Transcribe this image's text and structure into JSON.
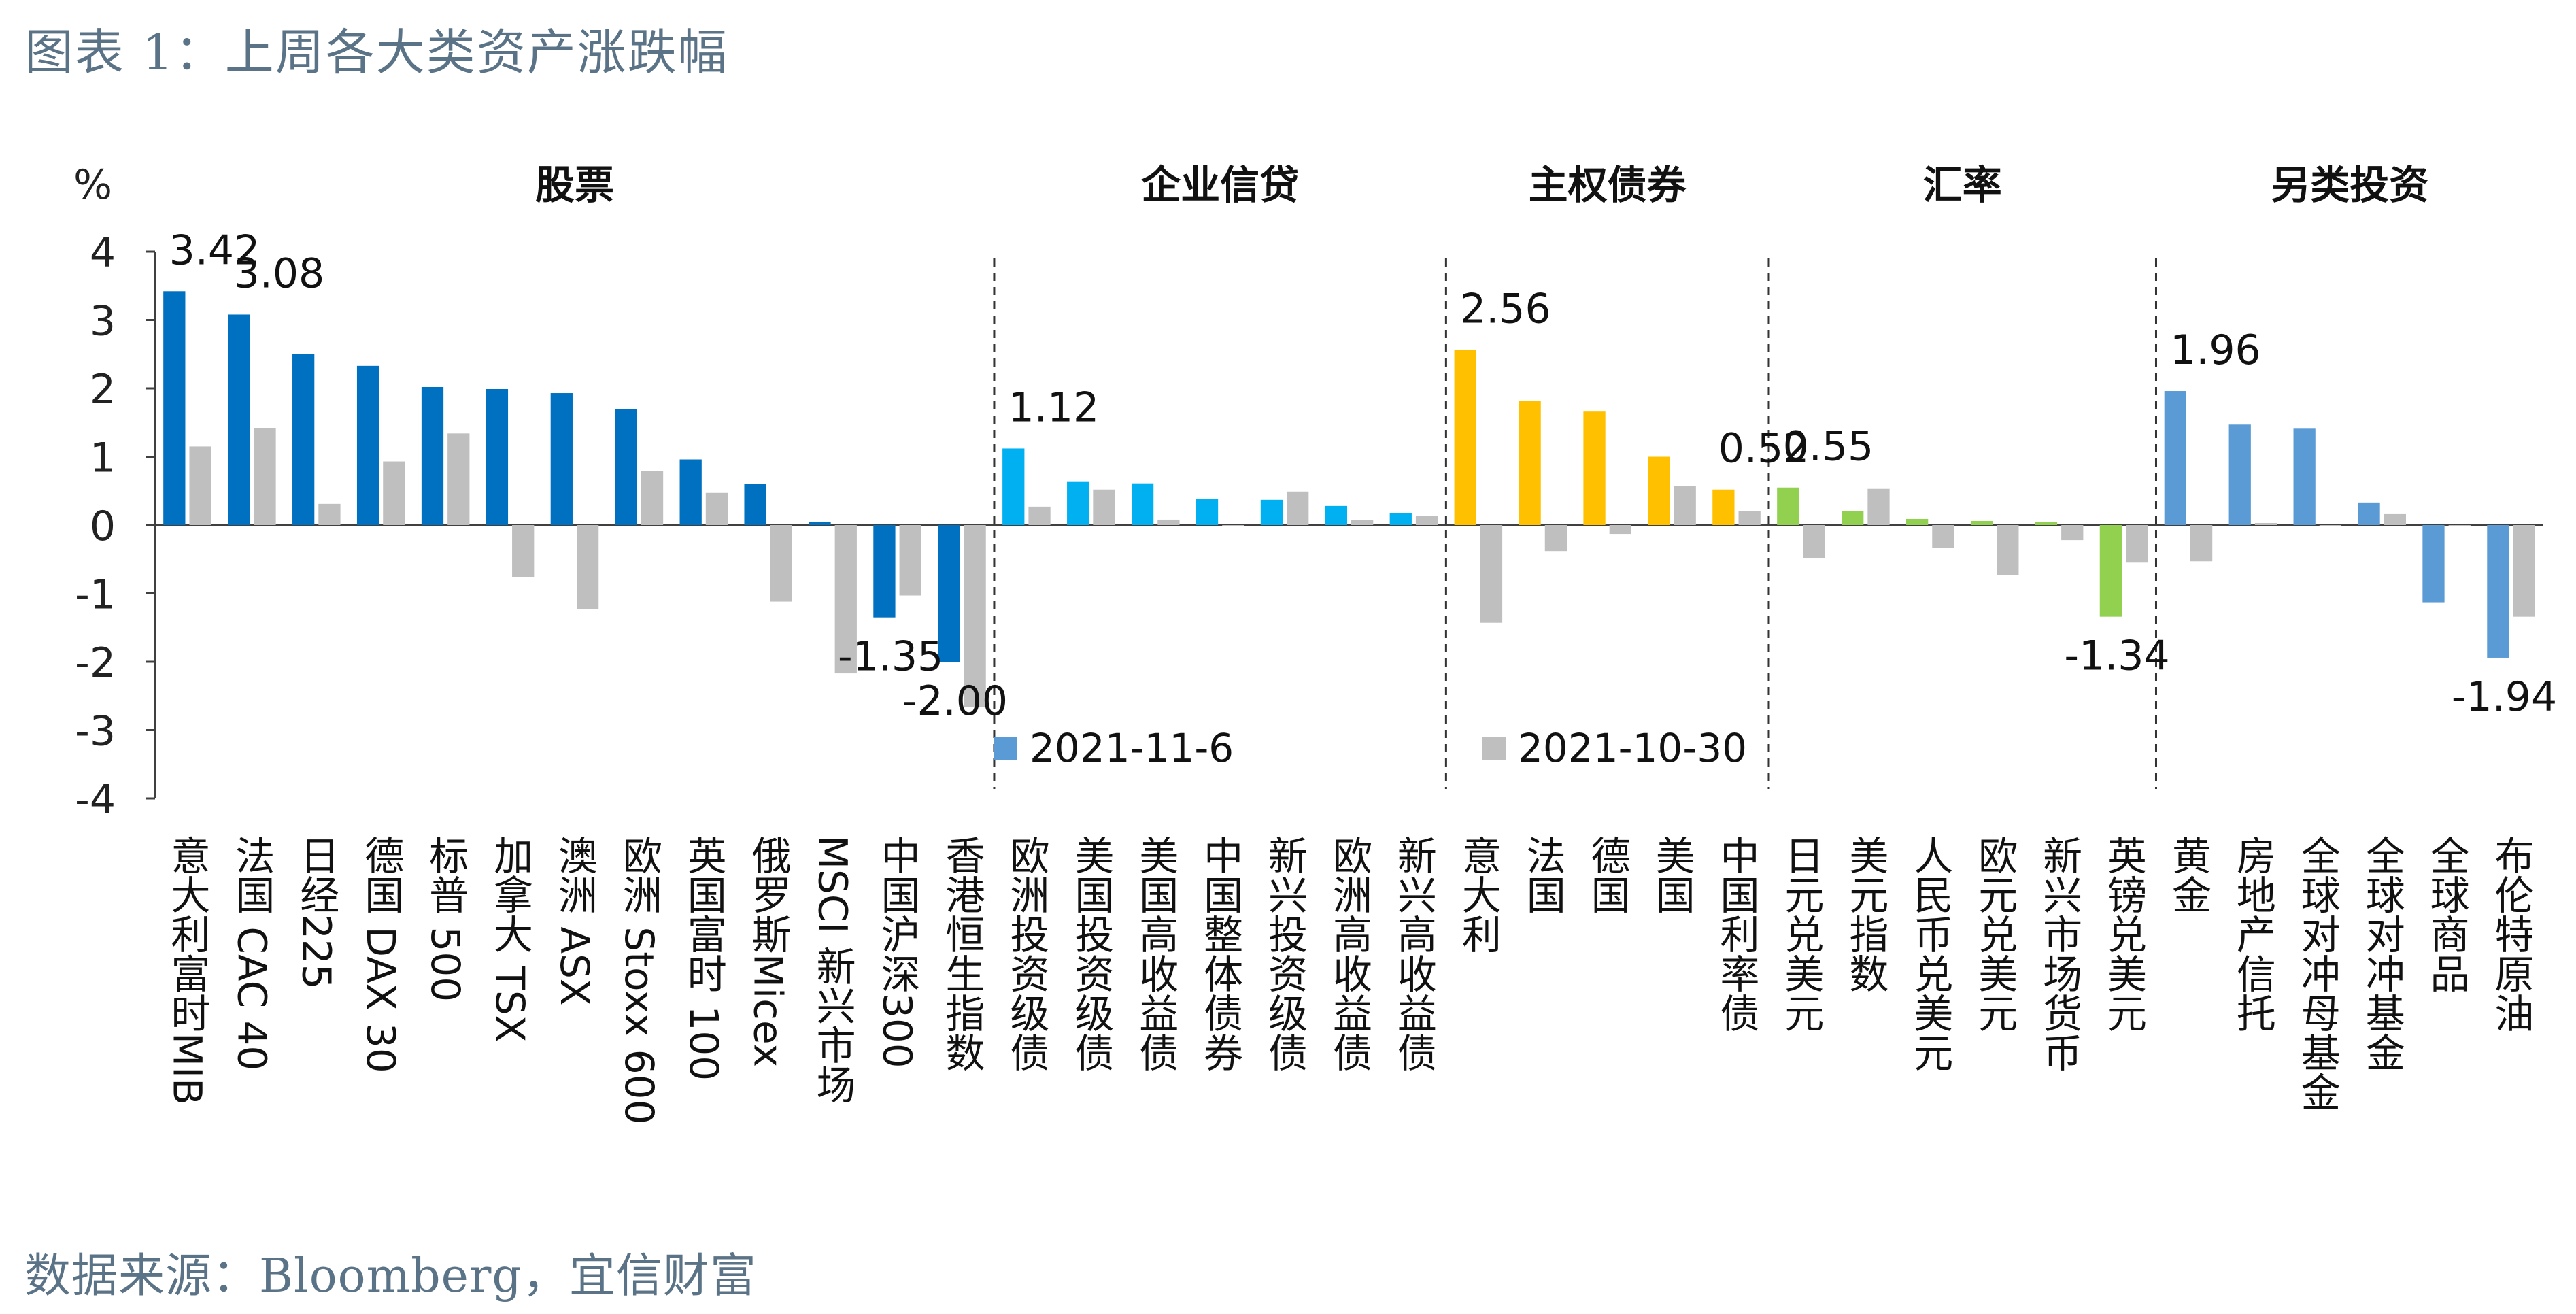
{
  "title": "图表 1：上周各大类资产涨跌幅",
  "source": "数据来源：Bloomberg，宜信财富",
  "chart_data": {
    "type": "bar",
    "ylabel": "%",
    "ylim": [
      -4,
      4
    ],
    "yticks": [
      4,
      3,
      2,
      1,
      0,
      -1,
      -2,
      -3,
      -4
    ],
    "grid": false,
    "legend_position": "bottom-inside",
    "groups": [
      {
        "name": "股票",
        "color": "#0070c0",
        "start": 0,
        "end": 12
      },
      {
        "name": "企业信贷",
        "color": "#00b0f0",
        "start": 13,
        "end": 19
      },
      {
        "name": "主权债券",
        "color": "#ffc000",
        "start": 20,
        "end": 24
      },
      {
        "name": "汇率",
        "color": "#92d050",
        "start": 25,
        "end": 30
      },
      {
        "name": "另类投资",
        "color": "#5b9bd5",
        "start": 31,
        "end": 36
      }
    ],
    "categories": [
      "意大利富时MIB",
      "法国 CAC 40",
      "日经225",
      "德国 DAX 30",
      "标普 500",
      "加拿大 TSX",
      "澳洲 ASX",
      "欧洲 Stoxx 600",
      "英国富时 100",
      "俄罗斯Micex",
      "MSCI 新兴市场",
      "中国沪深300",
      "香港恒生指数",
      "欧洲投资级债",
      "美国投资级债",
      "美国高收益债",
      "中国整体债券",
      "新兴投资级债",
      "欧洲高收益债",
      "新兴高收益债",
      "意大利",
      "法国",
      "德国",
      "美国",
      "中国利率债",
      "日元兑美元",
      "美元指数",
      "人民币兑美元",
      "欧元兑美元",
      "新兴市场货币",
      "英镑兑美元",
      "黄金",
      "房地产信托",
      "全球对冲母基金",
      "全球对冲基金",
      "全球商品",
      "布伦特原油"
    ],
    "series": [
      {
        "name": "2021-11-6",
        "values": [
          3.42,
          3.08,
          2.5,
          2.33,
          2.02,
          1.99,
          1.93,
          1.7,
          0.96,
          0.6,
          0.05,
          -1.35,
          -2.0,
          1.12,
          0.64,
          0.61,
          0.38,
          0.37,
          0.28,
          0.17,
          2.56,
          1.82,
          1.66,
          1.0,
          0.52,
          0.55,
          0.2,
          0.09,
          0.06,
          0.04,
          -1.34,
          1.96,
          1.47,
          1.41,
          0.33,
          -1.13,
          -1.94
        ]
      },
      {
        "name": "2021-10-30",
        "values": [
          1.15,
          1.42,
          0.31,
          0.93,
          1.34,
          -0.76,
          -1.23,
          0.79,
          0.47,
          -1.12,
          -2.17,
          -1.03,
          -2.66,
          0.27,
          0.52,
          0.08,
          0.0,
          0.49,
          0.07,
          0.13,
          -1.43,
          -0.38,
          -0.13,
          0.57,
          0.2,
          -0.48,
          0.53,
          -0.33,
          -0.73,
          -0.22,
          -0.55,
          -0.53,
          0.03,
          0.0,
          0.16,
          0.0,
          -1.34
        ]
      }
    ],
    "series_colors": [
      "#5b9bd5",
      "#bfbfbf"
    ],
    "second_series_color": "#bfbfbf",
    "data_labels": [
      {
        "index": 0,
        "text": "3.42"
      },
      {
        "index": 1,
        "text": "3.08"
      },
      {
        "index": 11,
        "text": "-1.35"
      },
      {
        "index": 12,
        "text": "-2.00"
      },
      {
        "index": 13,
        "text": "1.12"
      },
      {
        "index": 20,
        "text": "2.56"
      },
      {
        "index": 24,
        "text": "0.52"
      },
      {
        "index": 25,
        "text": "0.55"
      },
      {
        "index": 30,
        "text": "-1.34"
      },
      {
        "index": 31,
        "text": "1.96"
      },
      {
        "index": 36,
        "text": "-1.94"
      }
    ]
  }
}
